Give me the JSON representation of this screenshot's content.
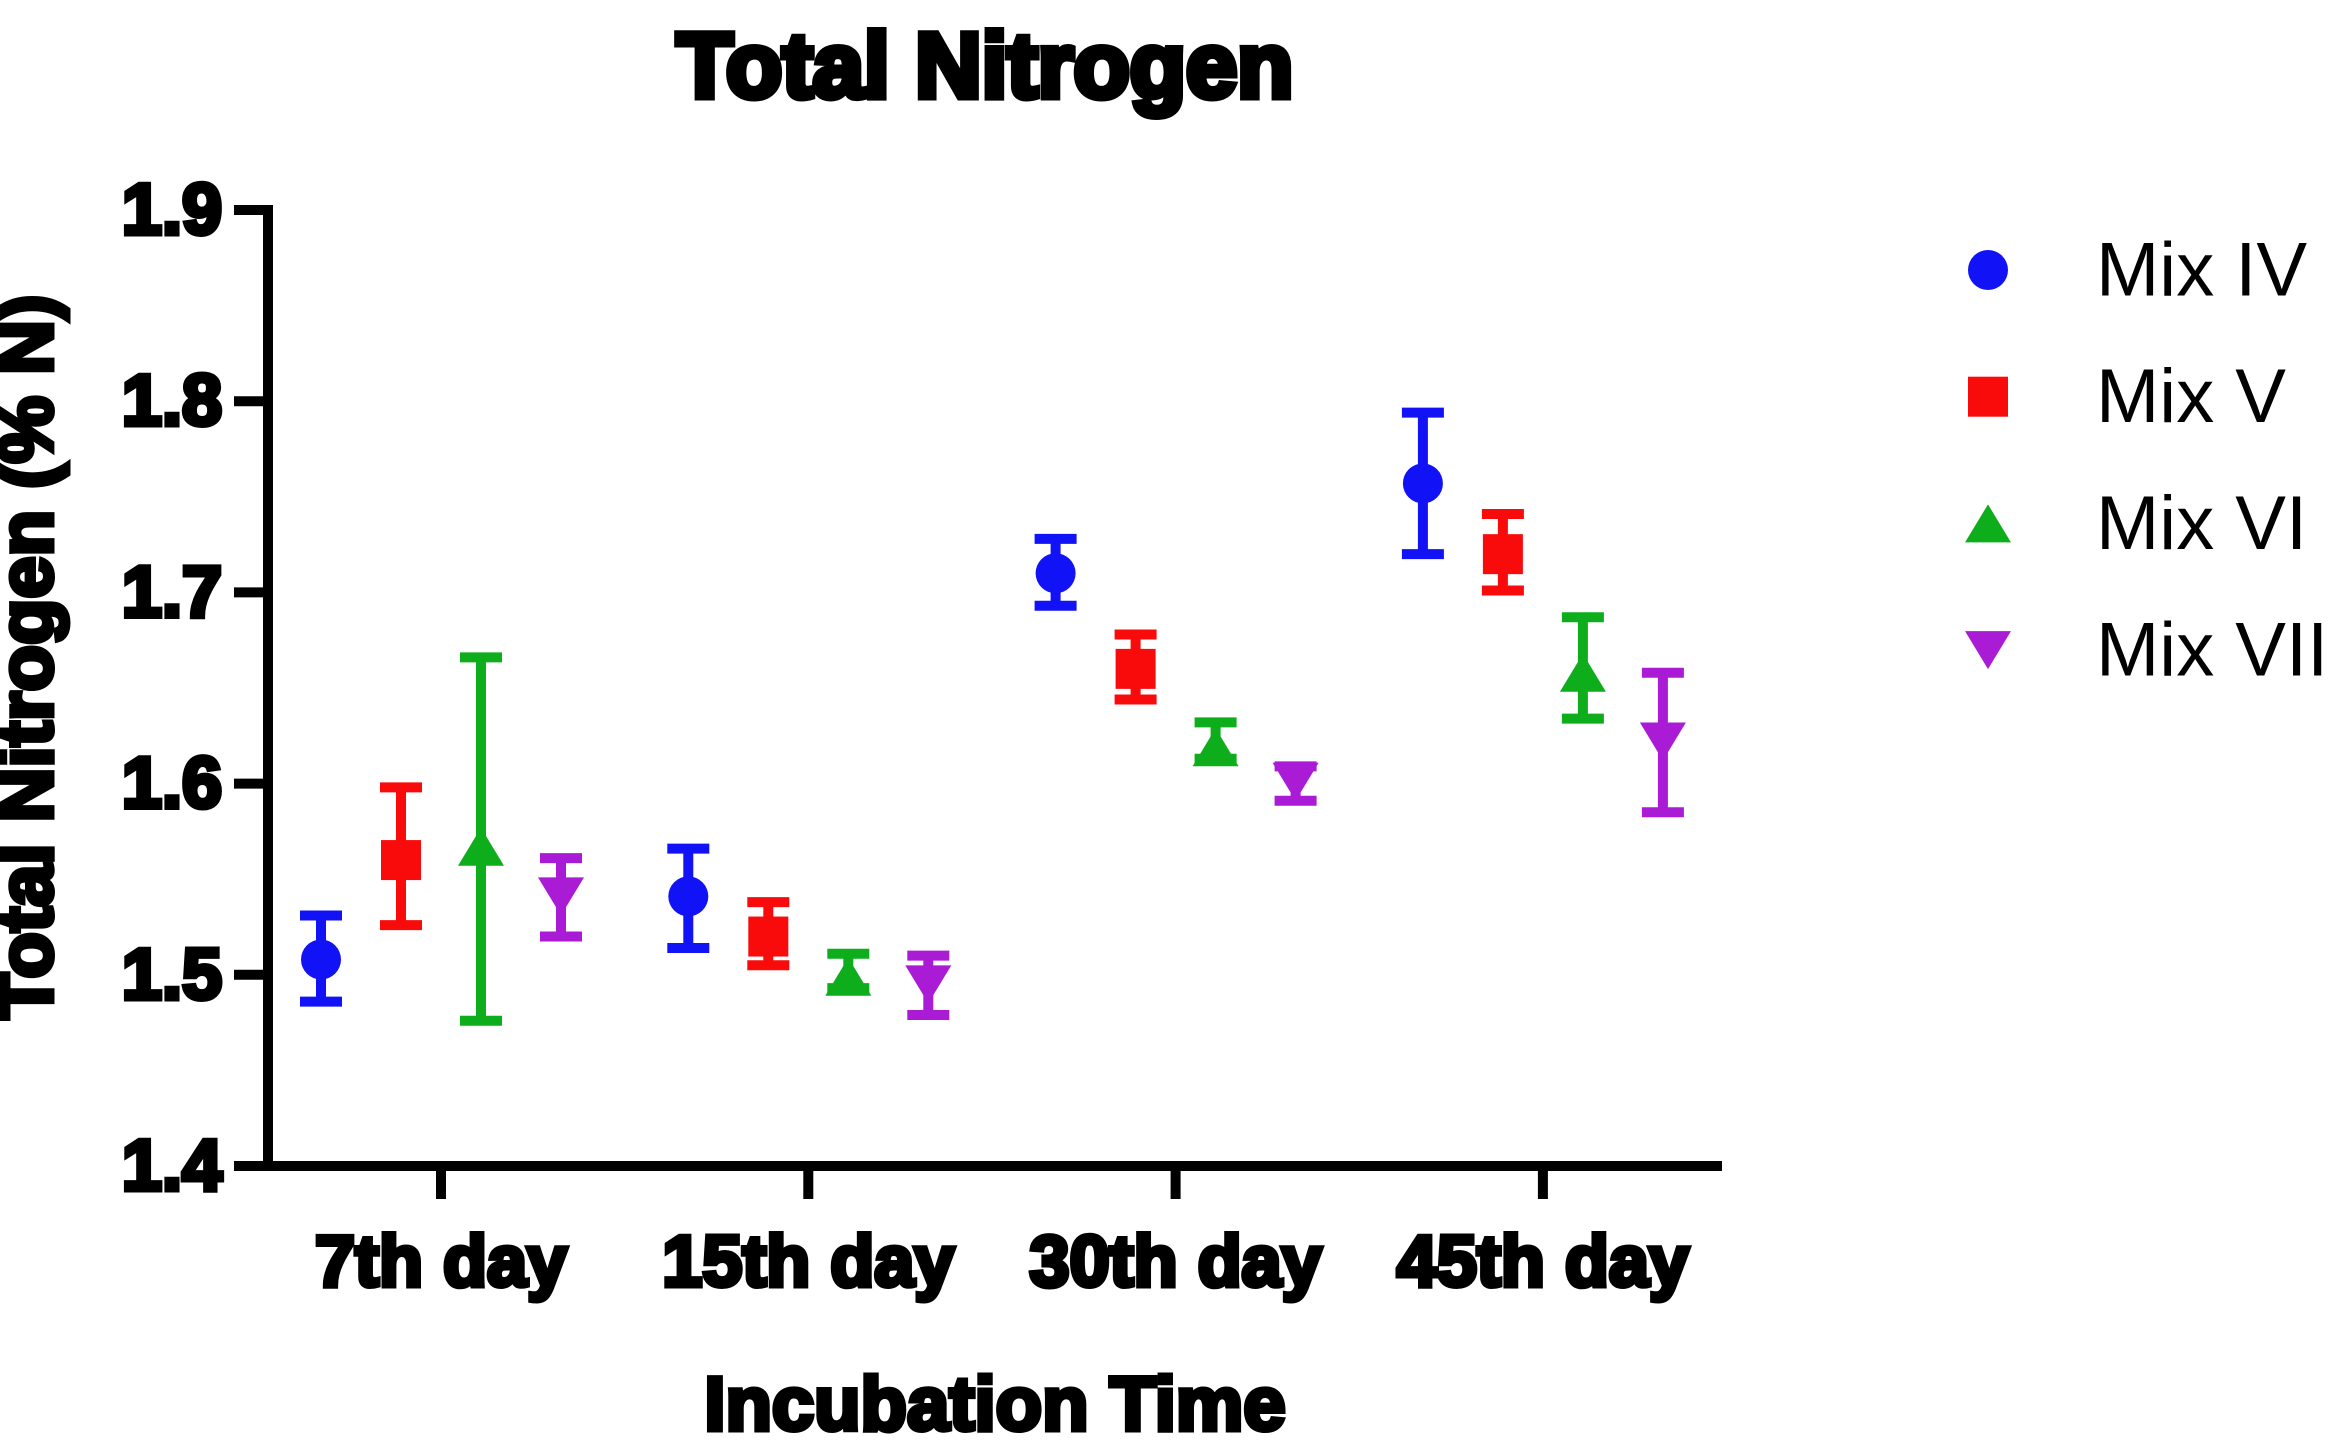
{
  "chart_data": {
    "type": "scatter",
    "title": "Total Nitrogen",
    "xlabel": "Incubation Time",
    "ylabel": "Total Nitrogen (% N)",
    "categories": [
      "7th day",
      "15th day",
      "30th day",
      "45th day"
    ],
    "ylim": [
      1.4,
      1.9
    ],
    "yticks": [
      1.4,
      1.5,
      1.6,
      1.7,
      1.8,
      1.9
    ],
    "ytick_labels": [
      "1.4",
      "1.5",
      "1.6",
      "1.7",
      "1.8",
      "1.9"
    ],
    "grid": false,
    "error_bars": true,
    "legend_position": "right",
    "series": [
      {
        "name": "Mix IV",
        "marker": "circle",
        "color": "#1212F7",
        "values": [
          1.508,
          1.541,
          1.71,
          1.757
        ],
        "err_plus": [
          0.023,
          0.025,
          0.018,
          0.037
        ],
        "err_minus": [
          0.022,
          0.027,
          0.017,
          0.037
        ]
      },
      {
        "name": "Mix V",
        "marker": "square",
        "color": "#F90B0B",
        "values": [
          1.56,
          1.52,
          1.66,
          1.72
        ],
        "err_plus": [
          0.038,
          0.018,
          0.018,
          0.021
        ],
        "err_minus": [
          0.034,
          0.015,
          0.016,
          0.019
        ]
      },
      {
        "name": "Mix VI",
        "marker": "triangle-up",
        "color": "#0DAD1C",
        "values": [
          1.567,
          1.499,
          1.619,
          1.658
        ],
        "err_plus": [
          0.099,
          0.012,
          0.013,
          0.029
        ],
        "err_minus": [
          0.091,
          0.006,
          0.006,
          0.024
        ]
      },
      {
        "name": "Mix VII",
        "marker": "triangle-down",
        "color": "#AA1BD5",
        "values": [
          1.541,
          1.495,
          1.601,
          1.622
        ],
        "err_plus": [
          0.02,
          0.015,
          0.008,
          0.036
        ],
        "err_minus": [
          0.021,
          0.016,
          0.01,
          0.037
        ]
      }
    ]
  }
}
